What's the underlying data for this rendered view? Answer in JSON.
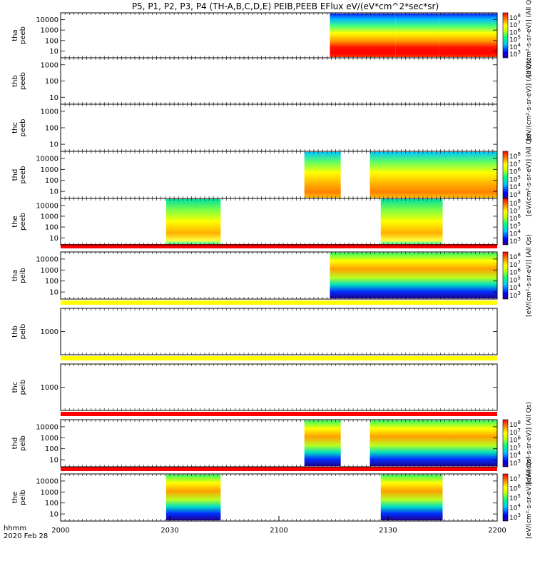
{
  "title": "P5, P1, P2, P3, P4 (TH-A,B,C,D,E) PEIB,PEEB EFlux eV/(eV*cm^2*sec*sr)",
  "colors": {
    "red": "#ff0000",
    "yellow": "#ffff00",
    "black": "#000000"
  },
  "chart_data": {
    "type": "heatmap",
    "title": "P5, P1, P2, P3, P4 (TH-A,B,C,D,E) PEIB,PEEB EFlux eV/(eV*cm^2*sec*sr)",
    "xlabel": "hhmm",
    "date_label": "2020 Feb 28",
    "x_range": [
      "2000",
      "2200"
    ],
    "x_ticks": [
      "2000",
      "2030",
      "2100",
      "2130",
      "2200"
    ],
    "panels": [
      {
        "id": "tha-peeb",
        "ylabel": [
          "tha",
          "peeb"
        ],
        "y_ticks": [
          "10000",
          "1000",
          "100",
          "10"
        ],
        "colorbar": {
          "label": "[eV/(cm^2-s-sr-eV)] (All Qs)",
          "ticks": [
            "10^8",
            "10^7",
            "10^6",
            "10^5",
            "10^4",
            "10^3"
          ]
        },
        "data_intervals": [
          {
            "start": "2114",
            "end": "2200",
            "blocks": [
              {
                "start": "2114",
                "end": "2132",
                "style": "electron-hot"
              },
              {
                "start": "2132",
                "end": "2144",
                "style": "electron-hot"
              },
              {
                "start": "2144",
                "end": "2200",
                "style": "electron-hot"
              }
            ]
          }
        ]
      },
      {
        "id": "thb-peeb",
        "ylabel": [
          "thb",
          "peeb"
        ],
        "y_ticks": [
          "1000",
          "100",
          "10"
        ],
        "colorbar": null,
        "data_intervals": []
      },
      {
        "id": "thc-peeb",
        "ylabel": [
          "thc",
          "peeb"
        ],
        "y_ticks": [
          "1000",
          "100",
          "10"
        ],
        "colorbar": {
          "label": "[eV/(cm^2-s-sr-eV)] (All Qs)",
          "ticks": []
        },
        "data_intervals": []
      },
      {
        "id": "thd-peeb",
        "ylabel": [
          "thd",
          "peeb"
        ],
        "y_ticks": [
          "10000",
          "1000",
          "100",
          "10"
        ],
        "colorbar": {
          "label": "[eV/(cm^2-s-sr-eV)] (All Qs)",
          "ticks": [
            "10^8",
            "10^7",
            "10^6",
            "10^5",
            "10^4",
            "10^3"
          ]
        },
        "data_intervals": [
          {
            "start": "2107",
            "end": "2117",
            "blocks": [
              {
                "start": "2107",
                "end": "2117",
                "style": "electron"
              }
            ]
          },
          {
            "start": "2125",
            "end": "2200",
            "blocks": [
              {
                "start": "2125",
                "end": "2200",
                "style": "electron"
              }
            ]
          }
        ]
      },
      {
        "id": "the-peeb",
        "ylabel": [
          "the",
          "peeb"
        ],
        "y_ticks": [
          "10000",
          "1000",
          "100",
          "10"
        ],
        "colorbar": {
          "label": "",
          "ticks": [
            "10^8",
            "10^7",
            "10^6",
            "10^5",
            "10^4",
            "10^3"
          ]
        },
        "data_intervals": [
          {
            "start": "2029",
            "end": "2044",
            "blocks": [
              {
                "start": "2029",
                "end": "2044",
                "style": "electron-flat"
              }
            ]
          },
          {
            "start": "2128",
            "end": "2145",
            "blocks": [
              {
                "start": "2128",
                "end": "2145",
                "style": "electron-flat"
              }
            ]
          }
        ]
      },
      {
        "id": "tha-peib",
        "ylabel": [
          "tha",
          "peib"
        ],
        "y_ticks": [
          "10000",
          "1000",
          "100",
          "10"
        ],
        "colorbar": {
          "label": "[eV/(cm^2-s-sr-eV)] (All Qs)",
          "ticks": [
            "10^8",
            "10^7",
            "10^6",
            "10^5",
            "10^4",
            "10^3"
          ]
        },
        "data_intervals": [
          {
            "start": "2114",
            "end": "2200",
            "blocks": [
              {
                "start": "2114",
                "end": "2200",
                "style": "ion"
              }
            ]
          }
        ]
      },
      {
        "id": "thb-peib",
        "ylabel": [
          "thb",
          "peib"
        ],
        "y_ticks": [
          "1000"
        ],
        "colorbar": null,
        "data_intervals": []
      },
      {
        "id": "thc-peib",
        "ylabel": [
          "thc",
          "peib"
        ],
        "y_ticks": [
          "1000"
        ],
        "colorbar": null,
        "data_intervals": []
      },
      {
        "id": "thd-peib",
        "ylabel": [
          "thd",
          "peib"
        ],
        "y_ticks": [
          "10000",
          "1000",
          "100",
          "10"
        ],
        "colorbar": {
          "label": "[eV/(cm^2-s-sr-eV)] (All Qs)",
          "ticks": [
            "10^8",
            "10^7",
            "10^6",
            "10^5",
            "10^4",
            "10^3"
          ]
        },
        "data_intervals": [
          {
            "start": "2107",
            "end": "2117",
            "blocks": [
              {
                "start": "2107",
                "end": "2117",
                "style": "ion"
              }
            ]
          },
          {
            "start": "2125",
            "end": "2200",
            "blocks": [
              {
                "start": "2125",
                "end": "2200",
                "style": "ion"
              }
            ]
          }
        ]
      },
      {
        "id": "the-peib",
        "ylabel": [
          "the",
          "peib"
        ],
        "y_ticks": [
          "10000",
          "1000",
          "100",
          "10"
        ],
        "colorbar": {
          "label": "[eV/(cm^2-s-sr-eV)] (All Qs)",
          "ticks": [
            "10^7",
            "10^6",
            "10^5",
            "10^4",
            "10^3"
          ]
        },
        "data_intervals": [
          {
            "start": "2029",
            "end": "2044",
            "blocks": [
              {
                "start": "2029",
                "end": "2044",
                "style": "ion"
              }
            ]
          },
          {
            "start": "2128",
            "end": "2145",
            "blocks": [
              {
                "start": "2128",
                "end": "2145",
                "style": "ion"
              }
            ]
          }
        ]
      }
    ],
    "separator_bars": [
      {
        "after_panel": 4,
        "color": "red"
      },
      {
        "after_panel": 5,
        "color": "yellow"
      },
      {
        "after_panel": 6,
        "color": "yellow"
      },
      {
        "after_panel": 7,
        "color": "red"
      },
      {
        "after_panel": 8,
        "color": "red"
      }
    ]
  }
}
